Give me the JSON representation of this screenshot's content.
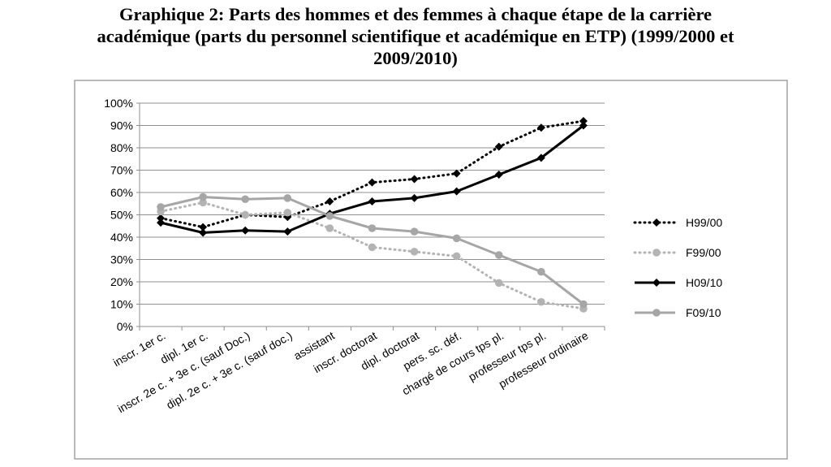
{
  "title_lines": [
    "Graphique 2: Parts des hommes et des femmes à chaque étape de la carrière",
    "académique (parts du personnel scientifique et académique en ETP) (1999/2000 et",
    "2009/2010)"
  ],
  "chart_data": {
    "type": "line",
    "title": "Graphique 2: Parts des hommes et des femmes à chaque étape de la carrière académique (parts du personnel scientifique et académique en ETP) (1999/2000 et 2009/2010)",
    "categories": [
      "inscr. 1er c.",
      "dipl. 1er c.",
      "inscr. 2e c. + 3e c. (sauf Doc.)",
      "dipl. 2e c. + 3e c. (sauf doc.)",
      "assistant",
      "inscr. doctorat",
      "dipl. doctorat",
      "pers. sc. déf.",
      "chargé de cours tps pl.",
      "professeur tps pl.",
      "professeur ordinaire"
    ],
    "y_ticks": [
      "0%",
      "10%",
      "20%",
      "30%",
      "40%",
      "50%",
      "60%",
      "70%",
      "80%",
      "90%",
      "100%"
    ],
    "ylim": [
      0,
      100
    ],
    "grid": true,
    "legend_position": "right",
    "series": [
      {
        "name": "H99/00",
        "values": [
          48.5,
          44.5,
          50.0,
          49.0,
          56.0,
          64.5,
          66.0,
          68.5,
          80.5,
          89.0,
          92.0
        ],
        "color": "#000000",
        "style": "dotted",
        "marker": "diamond"
      },
      {
        "name": "F99/00",
        "values": [
          51.5,
          55.5,
          50.0,
          51.0,
          44.0,
          35.5,
          33.5,
          31.5,
          19.5,
          11.0,
          8.0
        ],
        "color": "#b3b3b3",
        "style": "dotted",
        "marker": "circle"
      },
      {
        "name": "H09/10",
        "values": [
          46.5,
          42.0,
          43.0,
          42.5,
          50.5,
          56.0,
          57.5,
          60.5,
          68.0,
          75.5,
          90.0
        ],
        "color": "#000000",
        "style": "solid",
        "marker": "diamond"
      },
      {
        "name": "F09/10",
        "values": [
          53.5,
          58.0,
          57.0,
          57.5,
          49.5,
          44.0,
          42.5,
          39.5,
          32.0,
          24.5,
          10.0
        ],
        "color": "#a6a6a6",
        "style": "solid",
        "marker": "circle"
      }
    ]
  }
}
